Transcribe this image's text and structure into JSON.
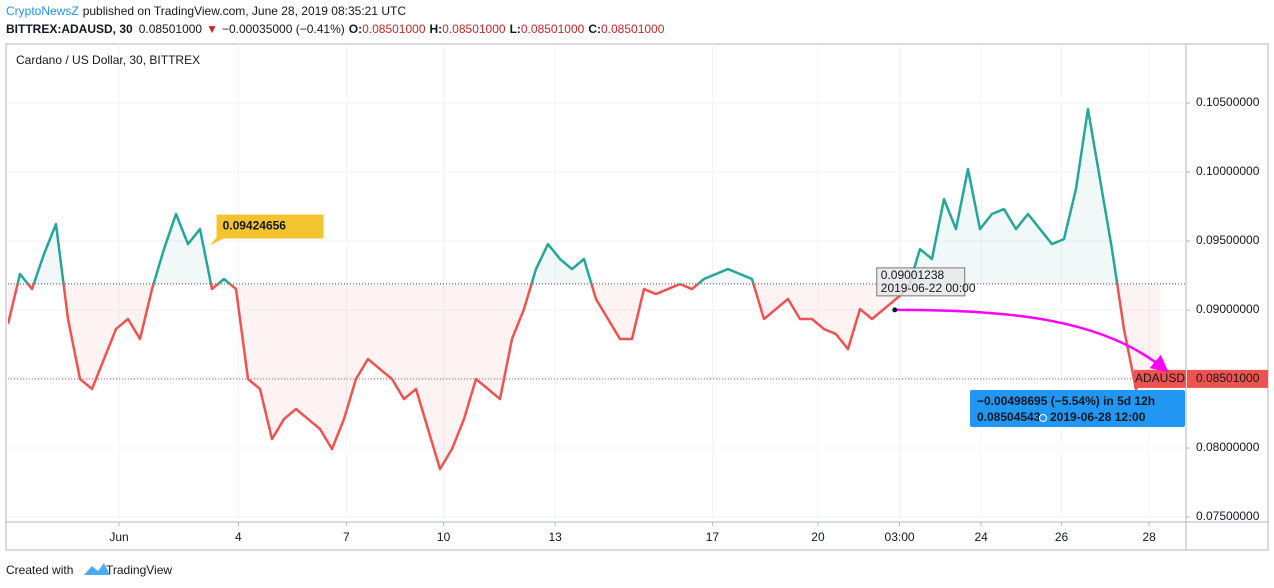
{
  "header": {
    "author": "CryptoNewsZ",
    "published": "published on TradingView.com, June 28, 2019 08:35:21 UTC"
  },
  "ohlc": {
    "symbol": "BITTREX:ADAUSD, 30",
    "last": "0.08501000",
    "arrow": "▼",
    "change": "−0.00035000 (−0.41%)",
    "o_label": "O:",
    "o": "0.08501000",
    "h_label": "H:",
    "h": "0.08501000",
    "l_label": "L:",
    "l": "0.08501000",
    "c_label": "C:",
    "c": "0.08501000"
  },
  "chart_data": {
    "type": "line",
    "title": "Cardano / US Dollar, 30, BITTREX",
    "xlim": [
      0,
      98.17
    ],
    "xticks": [
      {
        "value": 9.25,
        "label": "Jun"
      },
      {
        "value": 19.2,
        "label": "4"
      },
      {
        "value": 28.2,
        "label": "7"
      },
      {
        "value": 36.3,
        "label": "10"
      },
      {
        "value": 45.6,
        "label": "13"
      },
      {
        "value": 58.7,
        "label": "17"
      },
      {
        "value": 67.5,
        "label": "20"
      },
      {
        "value": 74.3,
        "label": "03:00"
      },
      {
        "value": 81.1,
        "label": "24"
      },
      {
        "value": 87.8,
        "label": "26"
      },
      {
        "value": 95.1,
        "label": "28"
      }
    ],
    "ylim": [
      0.07464,
      0.10928
    ],
    "yticks": [
      {
        "value": 0.075,
        "label": "0.07500000"
      },
      {
        "value": 0.08,
        "label": "0.08000000"
      },
      {
        "value": 0.085,
        "label": "0.08500000"
      },
      {
        "value": 0.09,
        "label": "0.09000000"
      },
      {
        "value": 0.095,
        "label": "0.09500000"
      },
      {
        "value": 0.1,
        "label": "0.10000000"
      },
      {
        "value": 0.105,
        "label": "0.10500000"
      }
    ],
    "grid": true,
    "baseline": 0.0919,
    "series": [
      {
        "name": "ADAUSD",
        "color_up": "#26a69a",
        "color_down": "#ef5350",
        "values": [
          0.08899,
          0.09261,
          0.09152,
          0.09406,
          0.09623,
          0.08935,
          0.085,
          0.08428,
          0.08645,
          0.08862,
          0.08935,
          0.0879,
          0.09152,
          0.09442,
          0.09696,
          0.09478,
          0.09587,
          0.09152,
          0.09225,
          0.09152,
          0.085,
          0.08428,
          0.08065,
          0.0821,
          0.08283,
          0.0821,
          0.08138,
          0.07993,
          0.0821,
          0.085,
          0.08645,
          0.08572,
          0.085,
          0.08355,
          0.08428,
          0.08138,
          0.07848,
          0.07993,
          0.0821,
          0.085,
          0.08428,
          0.08355,
          0.0879,
          0.09007,
          0.09297,
          0.09478,
          0.0937,
          0.09297,
          0.0937,
          0.0908,
          0.08935,
          0.0879,
          0.0879,
          0.09152,
          0.09116,
          0.09152,
          0.09188,
          0.09152,
          0.09225,
          0.09261,
          0.09297,
          0.09261,
          0.09225,
          0.08935,
          0.09007,
          0.0908,
          0.08935,
          0.08935,
          0.08862,
          0.08826,
          0.08717,
          0.09007,
          0.08935,
          0.09007,
          0.0908,
          0.09152,
          0.09442,
          0.0937,
          0.09804,
          0.09587,
          0.10022,
          0.09587,
          0.09696,
          0.09732,
          0.09587,
          0.09696,
          0.09587,
          0.09478,
          0.09514,
          0.09877,
          0.10456,
          0.09949,
          0.09442,
          0.08862,
          0.08428,
          0.08536,
          0.08536
        ]
      }
    ],
    "price_line": {
      "value": 0.08501,
      "label": "0.08501000"
    },
    "callout": {
      "x": 16.8,
      "value": 0.09424656,
      "label": "0.09424656"
    },
    "measure": {
      "from": {
        "x": 73.9,
        "value": 0.09001238,
        "label": "0.09001238",
        "date": "2019-06-22 00:00"
      },
      "to": {
        "x": 96.5,
        "value": 0.08504543,
        "label": "0.08504543",
        "date": "2019-06-28  12:00"
      },
      "change": "−0.00498695 (−5.54%) in 5d 12h"
    }
  },
  "footer": {
    "created": "Created with",
    "brand": "TradingView"
  }
}
